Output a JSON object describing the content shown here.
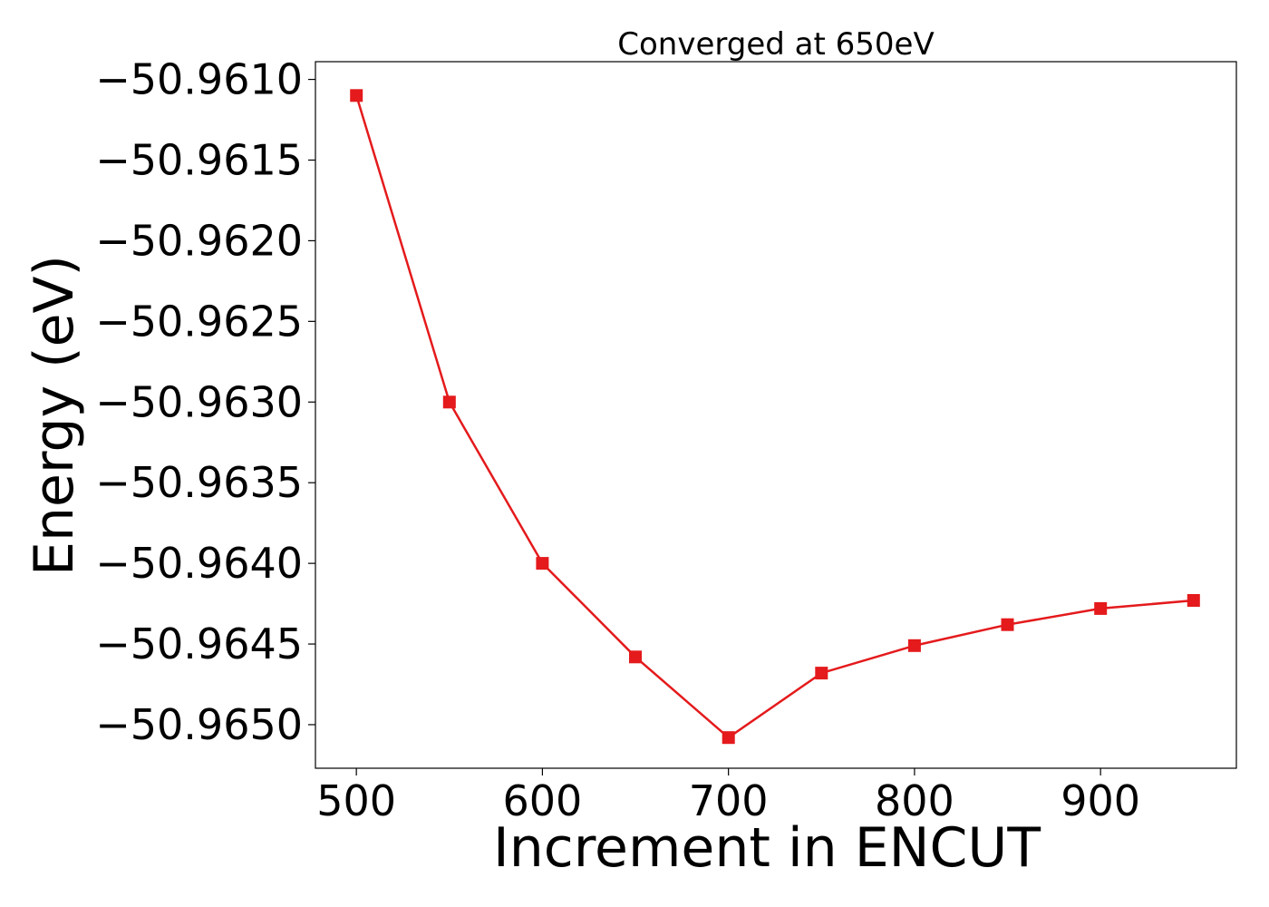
{
  "chart_data": {
    "type": "line",
    "title": "Converged at 650eV",
    "xlabel": "Increment in ENCUT",
    "ylabel": "Energy (eV)",
    "x": [
      500,
      550,
      600,
      650,
      700,
      750,
      800,
      850,
      900,
      950
    ],
    "series": [
      {
        "values": [
          -50.9611,
          -50.963,
          -50.964,
          -50.96458,
          -50.96508,
          -50.96468,
          -50.96451,
          -50.96438,
          -50.96428,
          -50.96423
        ],
        "color": "#e41a1c",
        "marker": "square"
      }
    ],
    "xticks": [
      500,
      600,
      700,
      800,
      900
    ],
    "xtick_labels": [
      "500",
      "600",
      "700",
      "800",
      "900"
    ],
    "yticks": [
      -50.961,
      -50.9615,
      -50.962,
      -50.9625,
      -50.963,
      -50.9635,
      -50.964,
      -50.9645,
      -50.965
    ],
    "ytick_labels": [
      "−50.9610",
      "−50.9615",
      "−50.9620",
      "−50.9625",
      "−50.9630",
      "−50.9635",
      "−50.9640",
      "−50.9645",
      "−50.9650"
    ],
    "xlim": [
      478,
      973
    ],
    "ylim": [
      -50.96527,
      -50.96089
    ],
    "grid": false,
    "legend": "none"
  }
}
